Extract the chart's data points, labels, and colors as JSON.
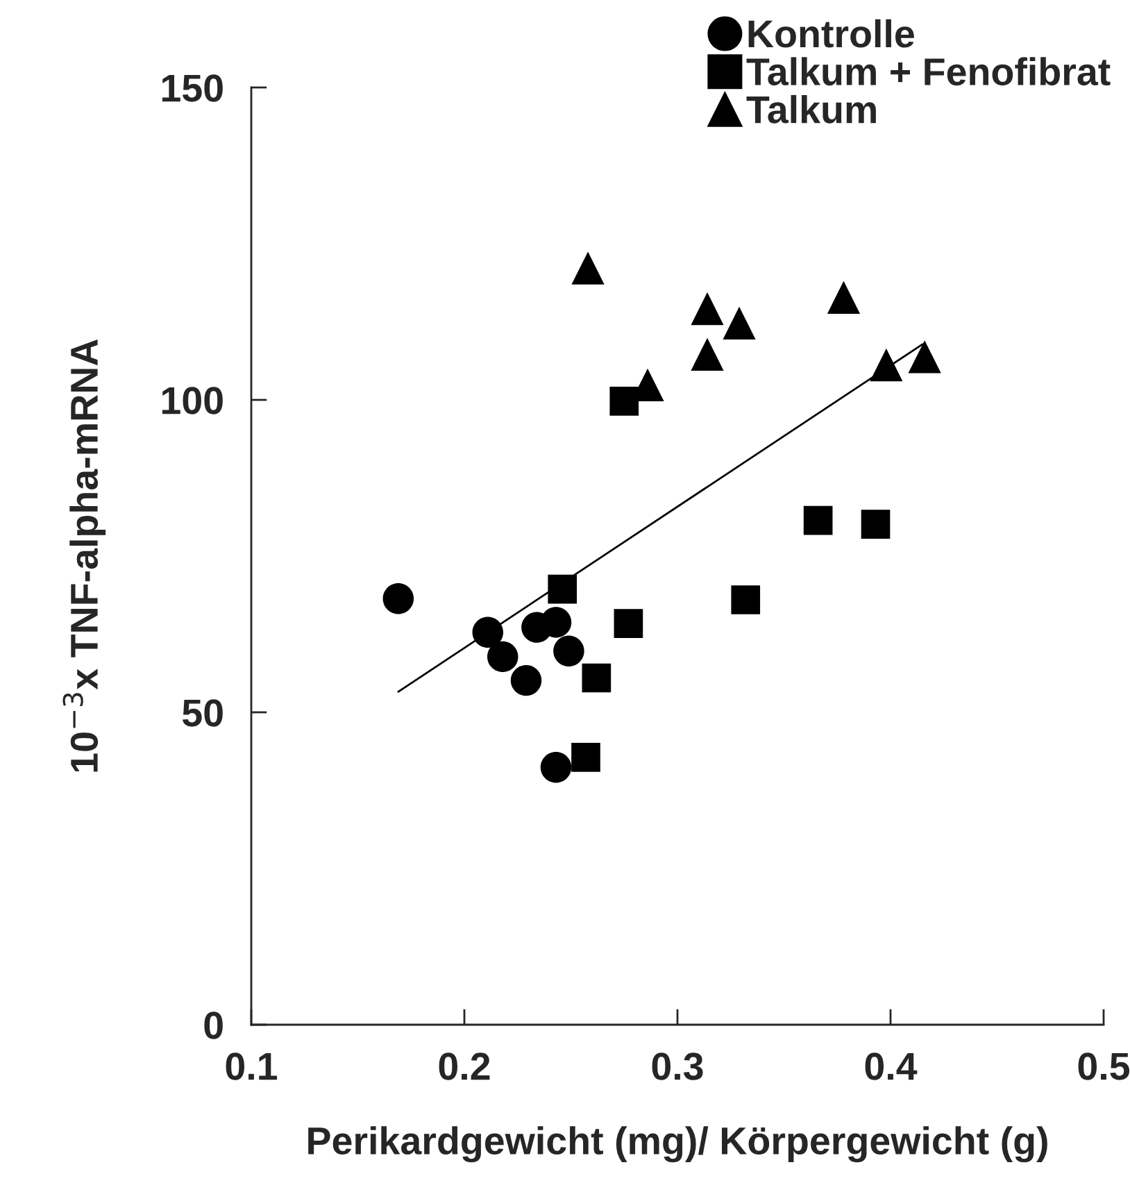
{
  "chart_data": {
    "type": "scatter",
    "xlabel": "Perikardgewicht (mg)/ Körpergewicht (g)",
    "ylabel": "10$^{−3}$x TNF-alpha-mRNA",
    "xlim": [
      0.1,
      0.5
    ],
    "xticks": [
      0.1,
      0.2,
      0.3,
      0.4,
      0.5
    ],
    "ylim": [
      0,
      150
    ],
    "yticks": [
      0,
      50,
      100,
      150
    ],
    "grid": false,
    "legend": "top right",
    "series": [
      {
        "name": "Kontrolle",
        "color": "#000000",
        "marker": "circle",
        "x": [
          0.169,
          0.211,
          0.218,
          0.229,
          0.234,
          0.243,
          0.249,
          0.243
        ],
        "values": [
          68.2,
          62.8,
          58.9,
          55.1,
          63.6,
          64.4,
          59.8,
          41.2
        ]
      },
      {
        "name": "Talkum + Fenofibrat",
        "color": "#000000",
        "marker": "square",
        "x": [
          0.246,
          0.275,
          0.277,
          0.262,
          0.257,
          0.332,
          0.366,
          0.393
        ],
        "values": [
          69.7,
          99.8,
          64.2,
          55.5,
          42.8,
          68.0,
          80.7,
          80.1
        ]
      },
      {
        "name": "Talkum",
        "color": "#000000",
        "marker": "triangle",
        "x": [
          0.258,
          0.314,
          0.329,
          0.314,
          0.378,
          0.286,
          0.398,
          0.416
        ],
        "values": [
          121.1,
          114.6,
          112.3,
          107.3,
          116.4,
          102.4,
          105.6,
          106.9
        ]
      },
      {
        "type": "line",
        "color": "#000000",
        "marker": "none",
        "line_style": "solid",
        "x": [
          0.169,
          0.415
        ],
        "values": [
          53.3,
          108.9
        ]
      }
    ]
  }
}
